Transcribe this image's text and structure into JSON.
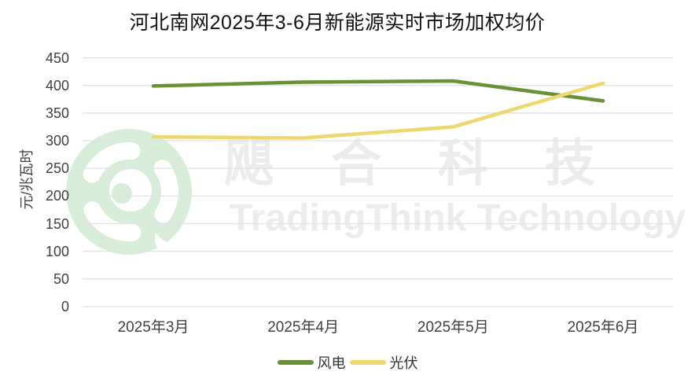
{
  "title": "河北南网2025年3-6月新能源实时市场加权均价",
  "watermark": {
    "cn": "飓合科技",
    "en": "TradingThink Technology",
    "text_color": "#ececec",
    "logo_color": "#d8ecda"
  },
  "colors": {
    "wind_line": "#699136",
    "solar_line": "#ecd86e",
    "gridline": "#e2e2e2",
    "axis_text": "#404040",
    "title_text": "#121212"
  },
  "chart_data": {
    "type": "line",
    "title": "河北南网2025年3-6月新能源实时市场加权均价",
    "categories": [
      "2025年3月",
      "2025年4月",
      "2025年5月",
      "2025年6月"
    ],
    "series": [
      {
        "name": "风电",
        "color": "#699136",
        "values": [
          399,
          406,
          408,
          372
        ]
      },
      {
        "name": "光伏",
        "color": "#ecd86e",
        "values": [
          307,
          305,
          325,
          404
        ]
      }
    ],
    "xlabel": "",
    "ylabel": "元/兆瓦时",
    "ylim": [
      0,
      450
    ],
    "yticks": [
      0,
      50,
      100,
      150,
      200,
      250,
      300,
      350,
      400,
      450
    ],
    "grid": true,
    "legend_position": "bottom"
  }
}
